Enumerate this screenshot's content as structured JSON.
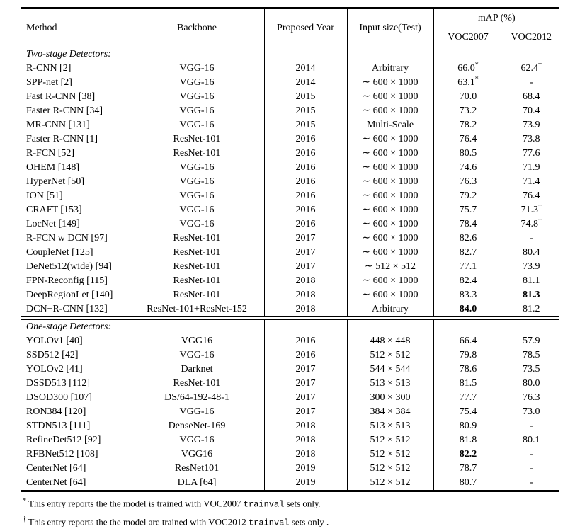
{
  "table": {
    "header": {
      "method": "Method",
      "backbone": "Backbone",
      "proposed_year": "Proposed Year",
      "input_size": "Input size(Test)",
      "map_group": "mAP (%)",
      "voc2007": "VOC2007",
      "voc2012": "VOC2012"
    },
    "sections": [
      {
        "label": "Two-stage Detectors:",
        "divider_after": true,
        "rows": [
          {
            "method": "R-CNN [2]",
            "backbone": "VGG-16",
            "year": "2014",
            "input": "Arbitrary",
            "voc07": "66.0",
            "voc07_sup": "*",
            "voc12": "62.4",
            "voc12_sup": "†"
          },
          {
            "method": "SPP-net [2]",
            "backbone": "VGG-16",
            "year": "2014",
            "input": "∼ 600 × 1000",
            "voc07": "63.1",
            "voc07_sup": "*",
            "voc12": "-"
          },
          {
            "method": "Fast R-CNN [38]",
            "backbone": "VGG-16",
            "year": "2015",
            "input": "∼ 600 × 1000",
            "voc07": "70.0",
            "voc12": "68.4"
          },
          {
            "method": "Faster R-CNN [34]",
            "backbone": "VGG-16",
            "year": "2015",
            "input": "∼ 600 × 1000",
            "voc07": "73.2",
            "voc12": "70.4"
          },
          {
            "method": "MR-CNN [131]",
            "backbone": "VGG-16",
            "year": "2015",
            "input": "Multi-Scale",
            "voc07": "78.2",
            "voc12": "73.9"
          },
          {
            "method": "Faster R-CNN [1]",
            "backbone": "ResNet-101",
            "year": "2016",
            "input": "∼ 600 × 1000",
            "voc07": "76.4",
            "voc12": "73.8"
          },
          {
            "method": "R-FCN [52]",
            "backbone": "ResNet-101",
            "year": "2016",
            "input": "∼ 600 × 1000",
            "voc07": "80.5",
            "voc12": "77.6"
          },
          {
            "method": "OHEM [148]",
            "backbone": "VGG-16",
            "year": "2016",
            "input": "∼ 600 × 1000",
            "voc07": "74.6",
            "voc12": "71.9"
          },
          {
            "method": "HyperNet [50]",
            "backbone": "VGG-16",
            "year": "2016",
            "input": "∼ 600 × 1000",
            "voc07": "76.3",
            "voc12": "71.4"
          },
          {
            "method": "ION [51]",
            "backbone": "VGG-16",
            "year": "2016",
            "input": "∼ 600 × 1000",
            "voc07": "79.2",
            "voc12": "76.4"
          },
          {
            "method": "CRAFT [153]",
            "backbone": "VGG-16",
            "year": "2016",
            "input": "∼ 600 × 1000",
            "voc07": "75.7",
            "voc12": "71.3",
            "voc12_sup": "†"
          },
          {
            "method": "LocNet [149]",
            "backbone": "VGG-16",
            "year": "2016",
            "input": "∼ 600 × 1000",
            "voc07": "78.4",
            "voc12": "74.8",
            "voc12_sup": "†"
          },
          {
            "method": "R-FCN w DCN [97]",
            "backbone": "ResNet-101",
            "year": "2017",
            "input": "∼ 600 × 1000",
            "voc07": "82.6",
            "voc12": "-"
          },
          {
            "method": "CoupleNet [125]",
            "backbone": "ResNet-101",
            "year": "2017",
            "input": "∼ 600 × 1000",
            "voc07": "82.7",
            "voc12": "80.4"
          },
          {
            "method": "DeNet512(wide) [94]",
            "backbone": "ResNet-101",
            "year": "2017",
            "input": "∼ 512 × 512",
            "voc07": "77.1",
            "voc12": "73.9"
          },
          {
            "method": "FPN-Reconfig [115]",
            "backbone": "ResNet-101",
            "year": "2018",
            "input": "∼ 600 × 1000",
            "voc07": "82.4",
            "voc12": "81.1"
          },
          {
            "method": "DeepRegionLet [140]",
            "backbone": "ResNet-101",
            "year": "2018",
            "input": "∼ 600 × 1000",
            "voc07": "83.3",
            "voc12": "81.3",
            "voc12_bold": true
          },
          {
            "method": "DCN+R-CNN [132]",
            "backbone": "ResNet-101+ResNet-152",
            "year": "2018",
            "input": "Arbitrary",
            "voc07": "84.0",
            "voc07_bold": true,
            "voc12": "81.2"
          }
        ]
      },
      {
        "label": "One-stage Detectors:",
        "divider_after": false,
        "rows": [
          {
            "method": "YOLOv1 [40]",
            "backbone": "VGG16",
            "year": "2016",
            "input": "448 × 448",
            "voc07": "66.4",
            "voc12": "57.9"
          },
          {
            "method": "SSD512 [42]",
            "backbone": "VGG-16",
            "year": "2016",
            "input": "512 × 512",
            "voc07": "79.8",
            "voc12": "78.5"
          },
          {
            "method": "YOLOv2 [41]",
            "backbone": "Darknet",
            "year": "2017",
            "input": "544 × 544",
            "voc07": "78.6",
            "voc12": "73.5"
          },
          {
            "method": "DSSD513 [112]",
            "backbone": "ResNet-101",
            "year": "2017",
            "input": "513 × 513",
            "voc07": "81.5",
            "voc12": "80.0"
          },
          {
            "method": "DSOD300 [107]",
            "backbone": "DS/64-192-48-1",
            "year": "2017",
            "input": "300 × 300",
            "voc07": "77.7",
            "voc12": "76.3"
          },
          {
            "method": "RON384 [120]",
            "backbone": "VGG-16",
            "year": "2017",
            "input": "384 × 384",
            "voc07": "75.4",
            "voc12": "73.0"
          },
          {
            "method": "STDN513 [111]",
            "backbone": "DenseNet-169",
            "year": "2018",
            "input": "513 × 513",
            "voc07": "80.9",
            "voc12": "-"
          },
          {
            "method": "RefineDet512 [92]",
            "backbone": "VGG-16",
            "year": "2018",
            "input": "512 × 512",
            "voc07": "81.8",
            "voc12": "80.1"
          },
          {
            "method": "RFBNet512 [108]",
            "backbone": "VGG16",
            "year": "2018",
            "input": "512 × 512",
            "voc07": "82.2",
            "voc07_bold": true,
            "voc12": "-"
          },
          {
            "method": "CenterNet [64]",
            "backbone": "ResNet101",
            "year": "2019",
            "input": "512 × 512",
            "voc07": "78.7",
            "voc12": "-"
          },
          {
            "method": "CenterNet [64]",
            "backbone": "DLA [64]",
            "year": "2019",
            "input": "512 × 512",
            "voc07": "80.7",
            "voc12": "-"
          }
        ]
      }
    ],
    "footnotes": [
      {
        "marker": "*",
        "pre": "This entry reports the the model is trained with VOC2007",
        "code": "trainval",
        "post": "sets only."
      },
      {
        "marker": "†",
        "pre": "This entry reports the the model are trained with VOC2012",
        "code": "trainval",
        "post": "sets only ."
      }
    ]
  }
}
